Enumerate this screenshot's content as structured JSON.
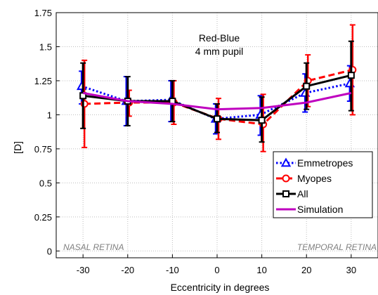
{
  "chart_data": {
    "type": "line",
    "title": "",
    "xlabel": "Eccentricity in degrees",
    "ylabel": "[D]",
    "x": [
      -30,
      -20,
      -10,
      0,
      10,
      20,
      30
    ],
    "xticks": [
      "-30",
      "-20",
      "-10",
      "0",
      "10",
      "20",
      "30"
    ],
    "yticks": [
      "0",
      "0.25",
      "0.5",
      "0.75",
      "1",
      "1.25",
      "1.5",
      "1.75"
    ],
    "xlim": [
      -36,
      36
    ],
    "ylim": [
      -0.05,
      1.75
    ],
    "grid": true,
    "legend_position": "bottom-right",
    "annotations": {
      "line1": "Red-Blue",
      "line2": "4 mm pupil",
      "left_region": "NASAL RETINA",
      "right_region": "TEMPORAL RETINA"
    },
    "series": [
      {
        "name": "Emmetropes",
        "color": "#0000ff",
        "style": "dotted",
        "marker": "triangle",
        "values": [
          1.21,
          1.1,
          1.11,
          0.97,
          1.0,
          1.16,
          1.23
        ],
        "err_low": [
          1.08,
          0.92,
          0.95,
          0.86,
          0.85,
          1.02,
          1.1
        ],
        "err_high": [
          1.32,
          1.28,
          1.25,
          1.08,
          1.14,
          1.3,
          1.36
        ]
      },
      {
        "name": "Myopes",
        "color": "#ff0000",
        "style": "dashed",
        "marker": "circle",
        "values": [
          1.08,
          1.09,
          1.09,
          0.97,
          0.93,
          1.25,
          1.33
        ],
        "err_low": [
          0.76,
          0.99,
          0.93,
          0.82,
          0.73,
          1.06,
          1.0
        ],
        "err_high": [
          1.4,
          1.18,
          1.25,
          1.12,
          1.15,
          1.44,
          1.66
        ]
      },
      {
        "name": "All",
        "color": "#000000",
        "style": "solid",
        "marker": "square",
        "values": [
          1.14,
          1.1,
          1.1,
          0.97,
          0.96,
          1.21,
          1.29
        ],
        "err_low": [
          0.9,
          0.92,
          0.95,
          0.87,
          0.8,
          1.04,
          1.03
        ],
        "err_high": [
          1.38,
          1.28,
          1.25,
          1.08,
          1.13,
          1.38,
          1.54
        ]
      },
      {
        "name": "Simulation",
        "color": "#bf00bf",
        "style": "solid",
        "marker": "none",
        "values": [
          1.16,
          1.1,
          1.08,
          1.04,
          1.05,
          1.09,
          1.16
        ]
      }
    ]
  }
}
